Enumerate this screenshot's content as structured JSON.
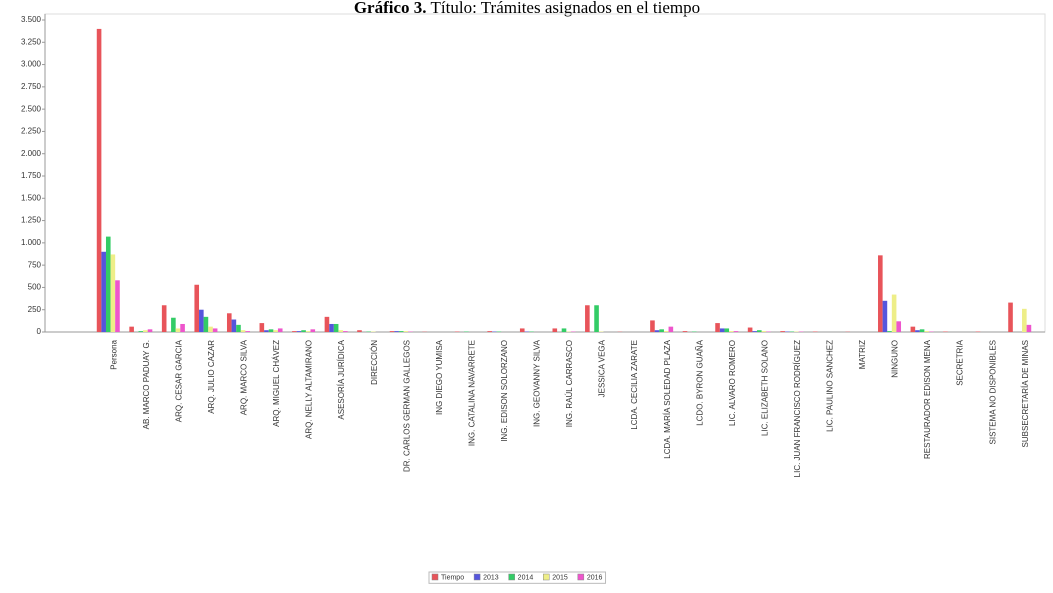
{
  "chart_data": {
    "type": "bar",
    "title_prefix": "Gráfico 3.",
    "title": "Título: Trámites asignados en el tiempo",
    "categories": [
      "Persona",
      "AB. MARCO PADUAY G.",
      "ARQ. CESAR GARCIA",
      "ARQ. JULIO CAZAR",
      "ARQ. MARCO SILVA",
      "ARQ. MIGUEL CHÁVEZ",
      "ARQ. NELLY ALTAMIRANO",
      "ASESORÍA JURÍDICA",
      "DIRECCIÓN",
      "DR. CARLOS GERMAN GALLEGOS",
      "ING DIEGO YUMISA",
      "ING. CATALINA NAVARRETE",
      "ING. EDISON SOLORZANO",
      "ING. GEOVANNY SILVA",
      "ING. RAÚL CARRASCO",
      "JESSICA VEGA",
      "LCDA. CECILIA ZARATE",
      "LCDA. MARÍA SOLEDAD PLAZA",
      "LCDO. BYRON GUAÑA",
      "LIC. ALVARO ROMERO",
      "LIC. ELIZABETH SOLANO",
      "LIC. JUAN FRANCISCO RODRÍGUEZ",
      "LIC. PAULINO SANCHEZ",
      "MATRIZ",
      "NINGUNO",
      "RESTAURADOR EDISON MENA",
      "SECRETRIA",
      "SISTEMA NO DISPONIBLES",
      "SUBSECRETARÍA DE MINAS"
    ],
    "series": [
      {
        "name": "Tiempo",
        "color": "#e8545a",
        "values": [
          3400,
          60,
          300,
          530,
          210,
          100,
          10,
          170,
          20,
          10,
          3,
          5,
          10,
          40,
          40,
          300,
          3,
          130,
          10,
          100,
          50,
          10,
          5,
          3,
          860,
          60,
          5,
          5,
          330
        ]
      },
      {
        "name": "2013",
        "color": "#5555dd",
        "values": [
          900,
          0,
          0,
          250,
          140,
          20,
          10,
          90,
          0,
          10,
          0,
          0,
          5,
          5,
          0,
          0,
          0,
          20,
          0,
          40,
          10,
          5,
          0,
          0,
          350,
          20,
          0,
          0,
          0
        ]
      },
      {
        "name": "2014",
        "color": "#33cc66",
        "values": [
          1070,
          10,
          160,
          170,
          80,
          30,
          20,
          90,
          5,
          10,
          0,
          5,
          5,
          5,
          40,
          300,
          0,
          30,
          5,
          40,
          20,
          5,
          0,
          0,
          10,
          30,
          0,
          0,
          0
        ]
      },
      {
        "name": "2015",
        "color": "#eeee88",
        "values": [
          870,
          20,
          40,
          60,
          20,
          20,
          10,
          20,
          5,
          10,
          0,
          0,
          0,
          0,
          5,
          5,
          0,
          10,
          0,
          10,
          10,
          5,
          0,
          0,
          420,
          10,
          0,
          0,
          260
        ]
      },
      {
        "name": "2016",
        "color": "#ee55cc",
        "values": [
          580,
          30,
          90,
          40,
          10,
          40,
          30,
          10,
          0,
          5,
          0,
          0,
          0,
          0,
          5,
          0,
          0,
          60,
          0,
          10,
          5,
          5,
          0,
          0,
          120,
          5,
          0,
          0,
          80
        ]
      }
    ],
    "ylim": [
      0,
      3500
    ],
    "yticks": [
      0,
      250,
      500,
      750,
      {
        "value": 1000,
        "label": "1.000"
      },
      {
        "value": 1250,
        "label": "1.250"
      },
      {
        "value": 1500,
        "label": "1.500"
      },
      {
        "value": 1750,
        "label": "1.750"
      },
      {
        "value": 2000,
        "label": "2.000"
      },
      {
        "value": 2250,
        "label": "2.250"
      },
      {
        "value": 2500,
        "label": "2.500"
      },
      {
        "value": 2750,
        "label": "2.750"
      },
      {
        "value": 3000,
        "label": "3.000"
      },
      {
        "value": 3250,
        "label": "3.250"
      },
      {
        "value": 3500,
        "label": "3.500"
      }
    ],
    "grid": false,
    "legend": "bottom"
  }
}
